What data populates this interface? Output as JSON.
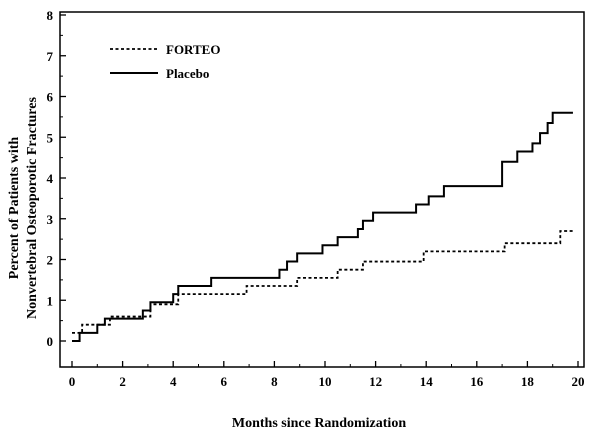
{
  "chart_data": {
    "type": "line",
    "title": "",
    "xlabel": "Months since Randomization",
    "ylabel_lines": [
      "Percent of Patients with",
      "Nonvertebral Osteoporotic Fractures"
    ],
    "xlim": [
      0,
      20
    ],
    "ylim": [
      0,
      8
    ],
    "x_ticks": [
      "0",
      "2",
      "4",
      "6",
      "8",
      "10",
      "12",
      "14",
      "16",
      "18",
      "20"
    ],
    "y_ticks": [
      "0",
      "1",
      "2",
      "3",
      "4",
      "5",
      "6",
      "7",
      "8"
    ],
    "grid": false,
    "legend_position": "top-left",
    "step": true,
    "series": [
      {
        "name": "FORTEO",
        "style": "dotted",
        "color": "#000000",
        "x": [
          0,
          0.4,
          1.2,
          1.5,
          2.8,
          3.1,
          3.8,
          4.2,
          6.9,
          8.9,
          10.5,
          11.5,
          13.9,
          17.1,
          19.3,
          19.8
        ],
        "y": [
          0.2,
          0.4,
          0.4,
          0.6,
          0.6,
          0.9,
          0.9,
          1.15,
          1.35,
          1.55,
          1.75,
          1.95,
          2.2,
          2.4,
          2.7,
          2.7
        ]
      },
      {
        "name": "Placebo",
        "style": "solid",
        "color": "#000000",
        "x": [
          0,
          0.3,
          1.0,
          1.3,
          2.8,
          3.1,
          3.6,
          4.0,
          4.2,
          5.5,
          8.2,
          8.5,
          8.9,
          9.3,
          9.9,
          10.5,
          11.3,
          11.5,
          11.9,
          13.6,
          14.1,
          14.7,
          17.0,
          17.3,
          17.6,
          18.2,
          18.5,
          18.8,
          19.0,
          19.8
        ],
        "y": [
          0.0,
          0.2,
          0.4,
          0.55,
          0.75,
          0.95,
          0.95,
          1.15,
          1.35,
          1.55,
          1.75,
          1.95,
          2.15,
          2.15,
          2.35,
          2.55,
          2.75,
          2.95,
          3.15,
          3.35,
          3.55,
          3.8,
          4.4,
          4.4,
          4.65,
          4.85,
          5.1,
          5.35,
          5.6,
          5.6
        ]
      }
    ]
  }
}
